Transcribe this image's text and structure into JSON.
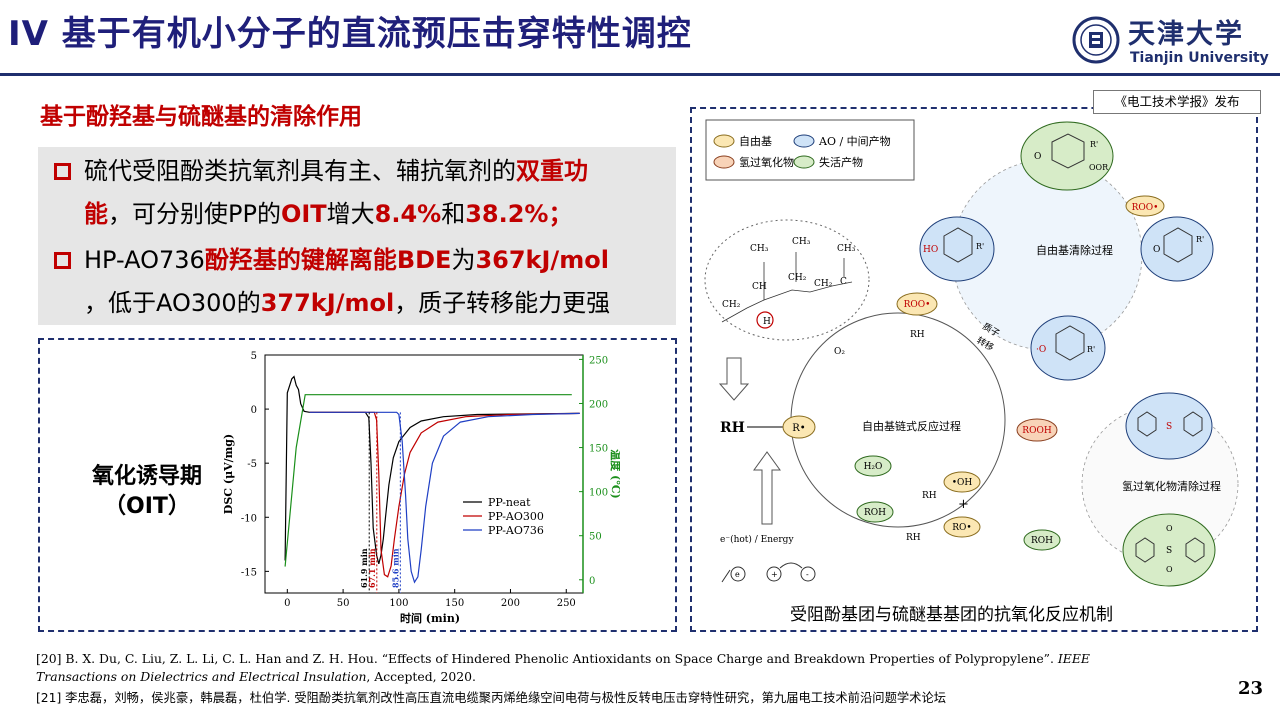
{
  "title": "IV 基于有机小分子的直流预压击穿特性调控",
  "logo": {
    "cn": "天津大学",
    "en": "Tianjin University"
  },
  "subtitle": "基于酚羟基与硫醚基的清除作用",
  "bullets": [
    {
      "parts": [
        "硫代受阻酚类抗氧剂具有主、辅抗氧剂的",
        "双重功",
        "能",
        "，可分别使PP的",
        "OIT",
        "增大",
        "8.4%",
        "和",
        "38.2%；"
      ]
    },
    {
      "parts": [
        "HP-AO736",
        "酚羟基的键解离能BDE",
        "为",
        "367kJ/mol",
        "，低于AO300的",
        "377kJ/mol",
        "，质子转移能力更强"
      ]
    }
  ],
  "dsc_panel": {
    "label_line1": "氧化诱导期",
    "label_line2": "（OIT）",
    "chart_data": {
      "type": "line",
      "xlabel": "时间 (min)",
      "ylabel": "DSC (μV/mg)",
      "y2label": "温度 (℃)",
      "xlim": [
        -20,
        265
      ],
      "ylim": [
        -17,
        5
      ],
      "y2lim": [
        -15,
        255
      ],
      "x_ticks": [
        0,
        50,
        100,
        150,
        200,
        250
      ],
      "y_ticks": [
        5,
        0,
        -5,
        -10,
        -15
      ],
      "y2_ticks": [
        0,
        50,
        100,
        150,
        200,
        250
      ],
      "legend_position": "center-right",
      "series": [
        {
          "name": "PP-neat",
          "color": "#000000",
          "points": [
            [
              -2,
              -14
            ],
            [
              0,
              1.5
            ],
            [
              4,
              2.8
            ],
            [
              6,
              3.0
            ],
            [
              8,
              2.2
            ],
            [
              10,
              1.8
            ],
            [
              12,
              0.5
            ],
            [
              15,
              -0.2
            ],
            [
              20,
              -0.3
            ],
            [
              40,
              -0.3
            ],
            [
              60,
              -0.3
            ],
            [
              70,
              -0.3
            ],
            [
              73,
              -0.8
            ],
            [
              75,
              -5
            ],
            [
              77,
              -11
            ],
            [
              80,
              -13.5
            ],
            [
              82,
              -14.3
            ],
            [
              84,
              -13.5
            ],
            [
              86,
              -12
            ],
            [
              88,
              -10
            ],
            [
              91,
              -7
            ],
            [
              95,
              -4.5
            ],
            [
              100,
              -3
            ],
            [
              110,
              -1.7
            ],
            [
              120,
              -1.1
            ],
            [
              140,
              -0.7
            ],
            [
              170,
              -0.5
            ],
            [
              210,
              -0.45
            ],
            [
              262,
              -0.4
            ]
          ]
        },
        {
          "name": "PP-AO300",
          "color": "#c00000",
          "points": [
            [
              20,
              -0.3
            ],
            [
              60,
              -0.3
            ],
            [
              78,
              -0.3
            ],
            [
              80,
              -1
            ],
            [
              82,
              -6
            ],
            [
              84,
              -13
            ],
            [
              87,
              -15.3
            ],
            [
              90,
              -15.5
            ],
            [
              93,
              -14.5
            ],
            [
              96,
              -12
            ],
            [
              100,
              -9
            ],
            [
              105,
              -6
            ],
            [
              110,
              -4
            ],
            [
              120,
              -2.2
            ],
            [
              135,
              -1.2
            ],
            [
              160,
              -0.7
            ],
            [
              200,
              -0.5
            ],
            [
              262,
              -0.4
            ]
          ]
        },
        {
          "name": "PP-AO736",
          "color": "#1f3fc4",
          "points": [
            [
              20,
              -0.3
            ],
            [
              80,
              -0.3
            ],
            [
              98,
              -0.3
            ],
            [
              100,
              -0.5
            ],
            [
              103,
              -3
            ],
            [
              106,
              -8
            ],
            [
              108,
              -12
            ],
            [
              111,
              -15
            ],
            [
              114,
              -16
            ],
            [
              117,
              -15.5
            ],
            [
              120,
              -13
            ],
            [
              124,
              -9
            ],
            [
              130,
              -5
            ],
            [
              140,
              -2.5
            ],
            [
              155,
              -1.2
            ],
            [
              180,
              -0.7
            ],
            [
              220,
              -0.5
            ],
            [
              262,
              -0.4
            ]
          ]
        },
        {
          "name": "温度",
          "color": "#1a8f1a",
          "axis": "right",
          "points": [
            [
              -2,
              15
            ],
            [
              8,
              150
            ],
            [
              16,
              210
            ],
            [
              20,
              210
            ],
            [
              100,
              210
            ],
            [
              200,
              210
            ],
            [
              255,
              210
            ]
          ]
        }
      ],
      "annotations": [
        {
          "text": "61.9 min",
          "x": 73.4,
          "color": "#000000"
        },
        {
          "text": "67.1 min",
          "x": 80.2,
          "color": "#c00000"
        },
        {
          "text": "85.6 min",
          "x": 101.3,
          "color": "#1f3fc4"
        }
      ]
    }
  },
  "mechanism": {
    "journal": "《电工技术学报》发布",
    "caption": "受阻酚基团与硫醚基基团的抗氧化反应机制",
    "legend": [
      "自由基",
      "AO / 中间产物",
      "氢过氧化物",
      "失活产物"
    ],
    "legend_colors": [
      "#fbe7b3",
      "#cfe3f7",
      "#f8d3b8",
      "#d7ecc8"
    ],
    "chain": {
      "ch3a": "CH₃",
      "ch3b": "CH₃",
      "ch3c": "CH₃",
      "ch": "CH",
      "ch2a": "CH₂",
      "ch2b": "CH₂",
      "ch2c": "CH₂",
      "c": "C",
      "h": "H"
    },
    "nodes": {
      "RH": "RH",
      "R": "R•",
      "ROO": "ROO•",
      "ROOH": "ROOH",
      "H2O": "H₂O",
      "OH": "•OH",
      "ROH": "ROH",
      "RO": "RO•",
      "ROH2": "ROH",
      "ROO2": "ROO•"
    },
    "labels": {
      "O2": "O₂",
      "RH1": "RH",
      "RH2": "RH",
      "RH3": "RH",
      "proton1": "质子",
      "proton2": "转移",
      "plus": "+",
      "chain_title": "自由基链式反应过程",
      "scav_title": "自由基清除过程",
      "perox_title": "氢过氧化物清除过程",
      "energy": "e⁻(hot) / Energy",
      "e": "e",
      "pos": "+",
      "neg": "-"
    },
    "mol": {
      "top_o": "O",
      "top_r": "R'",
      "top_oor": "OOR",
      "mid_o": "O",
      "mid_r": "R'",
      "left_ho": "HO",
      "left_r": "R'",
      "low_o": "·O",
      "low_r": "R'",
      "s": "S",
      "s2": "S",
      "o1": "O",
      "o2": "O"
    }
  },
  "references": [
    {
      "plain": "[20] B. X. Du, C. Liu, Z. L. Li, C. L. Han and Z. H. Hou. “Effects of Hindered Phenolic Antioxidants on Space Charge and Breakdown Properties of Polypropylene”. ",
      "italic": "IEEE"
    },
    {
      "plain": ", Accepted, 2020.",
      "italic": "Transactions on Dielectrics and Electrical Insulation"
    },
    {
      "plain": "[21] 李忠磊，刘畅，侯兆豪，韩晨磊，杜伯学. 受阻酚类抗氧剂改性高压直流电缆聚丙烯绝缘空间电荷与极性反转电压击穿特性研究，第九届电工技术前沿问题学术论坛"
    }
  ],
  "page_number": "23"
}
